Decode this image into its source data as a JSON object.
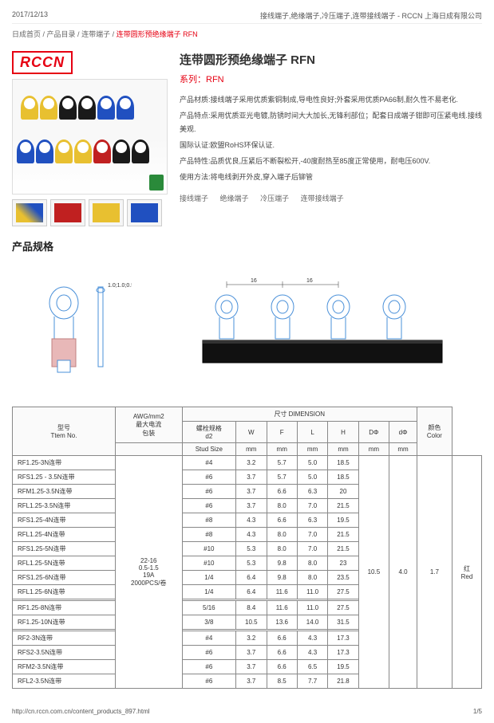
{
  "header": {
    "date": "2017/12/13",
    "pageTitle": "接线端子,绝缘端子,冷压端子,连带接线端子 - RCCN 上海日成有限公司"
  },
  "breadcrumb": {
    "items": [
      "日成首页",
      "产品目录",
      "连带端子"
    ],
    "current": "连带圆形预绝缘端子 RFN"
  },
  "logo": "RCCN",
  "product": {
    "title": "连带圆形预绝缘端子 RFN",
    "series": "系列：RFN",
    "lines": [
      "产品材质:接线端子采用优质紫铜制成,导电性良好;外套采用优质PA66制,耐久性不易老化.",
      "产品特点:采用优质亚光电镀,防锈时间大大加长,无锋利部位；配套日成端子钳即可压紧电线.接线美观.",
      "国际认证:欧盟RoHS环保认证.",
      "产品特性:品质优良,压紧后不断裂松开,-40度耐热至85度正常使用，耐电压600V.",
      "使用方法:将电线剥开外皮,穿入端子后铆管"
    ],
    "tags": [
      "接线端子",
      "绝缘端子",
      "冷压端子",
      "连带接线端子"
    ]
  },
  "colors": {
    "ring_yellow": "#e8c030",
    "ring_black": "#1a1a1a",
    "ring_blue": "#2050c0",
    "ring_red": "#c02020",
    "diag_blue": "#4a90d9",
    "accent": "#e60012"
  },
  "specTitle": "产品规格",
  "diagram": {
    "dim16": "16",
    "dimSmall": "1.0;1.0;0.5"
  },
  "table": {
    "headers": {
      "model": "型号",
      "modelEn": "Ttem No.",
      "awg": "AWG/mm2",
      "maxA": "最大电流",
      "pack": "包装",
      "dim": "尺寸 DIMENSION",
      "stud": "螺栓规格",
      "studD": "d2",
      "studSize": "Stud Size",
      "W": "W",
      "F": "F",
      "L": "L",
      "H": "H",
      "Dphi": "DΦ",
      "dphi": "dΦ",
      "color": "颜色",
      "colorEn": "Color",
      "mm": "mm"
    },
    "shared": {
      "awg": "22-16",
      "mm2": "0.5-1.5",
      "amp": "19A",
      "pack": "2000PCS/卷",
      "H": "10.5",
      "Dphi": "4.0",
      "dphi": "1.7",
      "color": "红",
      "colorEn": "Red"
    },
    "g1": [
      {
        "m": "RF1.25-3N连带",
        "s": "#4",
        "W": "3.2",
        "F": "5.7",
        "L": "5.0",
        "H": "18.5"
      },
      {
        "m": "RFS1.25 - 3.5N连带",
        "s": "#6",
        "W": "3.7",
        "F": "5.7",
        "L": "5.0",
        "H": "18.5"
      },
      {
        "m": "RFM1.25-3.5N连带",
        "s": "#6",
        "W": "3.7",
        "F": "6.6",
        "L": "6.3",
        "H": "20"
      },
      {
        "m": "RFL1.25-3.5N连带",
        "s": "#6",
        "W": "3.7",
        "F": "8.0",
        "L": "7.0",
        "H": "21.5"
      },
      {
        "m": "RFS1.25-4N连带",
        "s": "#8",
        "W": "4.3",
        "F": "6.6",
        "L": "6.3",
        "H": "19.5"
      },
      {
        "m": "RFL1.25-4N连带",
        "s": "#8",
        "W": "4.3",
        "F": "8.0",
        "L": "7.0",
        "H": "21.5"
      },
      {
        "m": "RFS1.25-5N连带",
        "s": "#10",
        "W": "5.3",
        "F": "8.0",
        "L": "7.0",
        "H": "21.5"
      },
      {
        "m": "RFL1.25-5N连带",
        "s": "#10",
        "W": "5.3",
        "F": "9.8",
        "L": "8.0",
        "H": "23"
      },
      {
        "m": "RFS1.25-6N连带",
        "s": "1/4",
        "W": "6.4",
        "F": "9.8",
        "L": "8.0",
        "H": "23.5"
      },
      {
        "m": "RFL1.25-6N连带",
        "s": "1/4",
        "W": "6.4",
        "F": "11.6",
        "L": "11.0",
        "H": "27.5"
      }
    ],
    "g2": [
      {
        "m": "RF1.25-8N连带",
        "s": "5/16",
        "W": "8.4",
        "F": "11.6",
        "L": "11.0",
        "H": "27.5"
      },
      {
        "m": "RF1.25-10N连带",
        "s": "3/8",
        "W": "10.5",
        "F": "13.6",
        "L": "14.0",
        "H": "31.5"
      }
    ],
    "g3": [
      {
        "m": "RF2-3N连带",
        "s": "#4",
        "W": "3.2",
        "F": "6.6",
        "L": "4.3",
        "H": "17.3"
      },
      {
        "m": "RFS2-3.5N连带",
        "s": "#6",
        "W": "3.7",
        "F": "6.6",
        "L": "4.3",
        "H": "17.3"
      },
      {
        "m": "RFM2-3.5N连带",
        "s": "#6",
        "W": "3.7",
        "F": "6.6",
        "L": "6.5",
        "H": "19.5"
      },
      {
        "m": "RFL2-3.5N连带",
        "s": "#6",
        "W": "3.7",
        "F": "8.5",
        "L": "7.7",
        "H": "21.8"
      }
    ]
  },
  "footer": {
    "url": "http://cn.rccn.com.cn/content_products_897.html",
    "page": "1/5"
  }
}
